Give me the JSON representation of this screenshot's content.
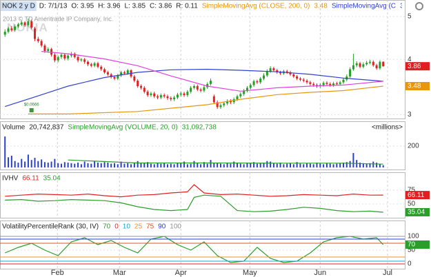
{
  "watermark": {
    "logo": "NOKIA",
    "copyright": "2013 © TD Ameritrade IP Company, Inc."
  },
  "chart_data": [
    {
      "type": "candlestick",
      "header": [
        {
          "text": "NOK 2 y D",
          "bg": "#cfe0f4"
        },
        {
          "text": "D: 7/1/13"
        },
        {
          "text": "O: 3.95"
        },
        {
          "text": "H: 3.96"
        },
        {
          "text": "L: 3.85"
        },
        {
          "text": "C: 3.86"
        },
        {
          "text": "R: 0.11"
        }
      ],
      "log_scale": true,
      "grid": true,
      "axis_box": true,
      "xlim": [
        -1.5,
        120.5
      ],
      "xticks": [
        {
          "value": 15.8,
          "label": "Feb"
        },
        {
          "value": 34.5,
          "label": "Mar"
        },
        {
          "value": 53,
          "label": "Apr"
        },
        {
          "value": 73.8,
          "label": "May"
        },
        {
          "value": 95,
          "label": "Jun"
        },
        {
          "value": 115.3,
          "label": "Jul"
        }
      ],
      "ylim": [
        2.94,
        5.11
      ],
      "yticks": [
        3,
        4,
        5
      ],
      "up_color": "#22a022",
      "down_color": "#e02020",
      "open": [
        4.55,
        4.62,
        4.7,
        4.66,
        4.75,
        4.8,
        4.85,
        4.78,
        4.88,
        4.7,
        4.45,
        4.4,
        4.3,
        4.18,
        4.22,
        4.1,
        3.98,
        4.05,
        4.1,
        4.02,
        4.08,
        4.12,
        4.05,
        3.98,
        4.0,
        3.95,
        3.9,
        3.87,
        3.92,
        3.85,
        3.8,
        3.74,
        3.7,
        3.65,
        3.62,
        3.68,
        3.74,
        3.72,
        3.78,
        3.66,
        3.58,
        3.48,
        3.45,
        3.38,
        3.32,
        3.35,
        3.3,
        3.28,
        3.32,
        3.3,
        3.27,
        3.25,
        3.28,
        3.33,
        3.35,
        3.32,
        3.38,
        3.45,
        3.48,
        3.42,
        3.4,
        3.46,
        3.52,
        3.3,
        3.2,
        3.12,
        3.15,
        3.18,
        3.22,
        3.2,
        3.25,
        3.3,
        3.34,
        3.4,
        3.45,
        3.5,
        3.57,
        3.55,
        3.62,
        3.68,
        3.76,
        3.82,
        3.78,
        3.74,
        3.72,
        3.76,
        3.74,
        3.7,
        3.66,
        3.62,
        3.6,
        3.58,
        3.55,
        3.52,
        3.5,
        3.48,
        3.5,
        3.54,
        3.52,
        3.5,
        3.53,
        3.52,
        3.55,
        3.6,
        3.66,
        3.8,
        3.88,
        3.92,
        3.85,
        3.9,
        3.93,
        3.95,
        3.88,
        3.82,
        3.95
      ],
      "high": [
        4.68,
        4.74,
        4.76,
        4.8,
        4.84,
        4.9,
        4.88,
        4.95,
        4.92,
        4.74,
        4.5,
        4.44,
        4.34,
        4.26,
        4.25,
        4.14,
        4.08,
        4.14,
        4.13,
        4.11,
        4.16,
        4.15,
        4.08,
        4.03,
        4.03,
        3.98,
        3.93,
        3.95,
        3.95,
        3.88,
        3.83,
        3.77,
        3.73,
        3.68,
        3.71,
        3.77,
        3.77,
        3.81,
        3.8,
        3.69,
        3.61,
        3.51,
        3.48,
        3.41,
        3.38,
        3.38,
        3.33,
        3.35,
        3.35,
        3.33,
        3.3,
        3.31,
        3.36,
        3.38,
        3.38,
        3.41,
        3.48,
        3.51,
        3.51,
        3.45,
        3.49,
        3.55,
        3.62,
        3.33,
        3.23,
        3.18,
        3.21,
        3.25,
        3.25,
        3.28,
        3.33,
        3.37,
        3.43,
        3.48,
        3.53,
        3.6,
        3.6,
        3.65,
        3.72,
        3.8,
        3.86,
        3.85,
        3.81,
        3.77,
        3.79,
        3.79,
        3.77,
        3.73,
        3.69,
        3.65,
        3.63,
        3.61,
        3.58,
        3.55,
        3.53,
        3.53,
        3.57,
        3.57,
        3.55,
        3.56,
        3.56,
        3.58,
        3.63,
        3.7,
        3.84,
        4.12,
        3.96,
        3.95,
        3.94,
        3.97,
        3.99,
        3.98,
        3.91,
        3.98,
        3.96
      ],
      "low": [
        4.5,
        4.58,
        4.62,
        4.62,
        4.71,
        4.76,
        4.74,
        4.74,
        4.68,
        4.4,
        4.36,
        4.26,
        4.14,
        4.14,
        4.06,
        3.94,
        3.94,
        4.01,
        3.98,
        3.98,
        4.04,
        4.02,
        3.94,
        3.95,
        3.91,
        3.86,
        3.84,
        3.84,
        3.82,
        3.77,
        3.71,
        3.67,
        3.62,
        3.59,
        3.59,
        3.65,
        3.69,
        3.69,
        3.63,
        3.55,
        3.45,
        3.42,
        3.35,
        3.29,
        3.29,
        3.27,
        3.25,
        3.25,
        3.27,
        3.24,
        3.22,
        3.22,
        3.25,
        3.3,
        3.29,
        3.29,
        3.35,
        3.42,
        3.39,
        3.37,
        3.37,
        3.43,
        3.49,
        3.17,
        3.09,
        3.09,
        3.12,
        3.15,
        3.17,
        3.17,
        3.22,
        3.27,
        3.31,
        3.37,
        3.42,
        3.47,
        3.52,
        3.52,
        3.59,
        3.65,
        3.73,
        3.75,
        3.71,
        3.69,
        3.69,
        3.71,
        3.67,
        3.63,
        3.59,
        3.57,
        3.55,
        3.52,
        3.49,
        3.47,
        3.45,
        3.45,
        3.47,
        3.49,
        3.47,
        3.47,
        3.49,
        3.49,
        3.52,
        3.57,
        3.63,
        3.77,
        3.84,
        3.82,
        3.82,
        3.87,
        3.9,
        3.85,
        3.79,
        3.79,
        3.85
      ],
      "close": [
        4.62,
        4.7,
        4.66,
        4.75,
        4.8,
        4.85,
        4.78,
        4.88,
        4.72,
        4.45,
        4.4,
        4.3,
        4.18,
        4.22,
        4.1,
        3.98,
        4.05,
        4.1,
        4.02,
        4.08,
        4.12,
        4.05,
        3.98,
        4.0,
        3.95,
        3.9,
        3.87,
        3.92,
        3.85,
        3.8,
        3.74,
        3.7,
        3.65,
        3.62,
        3.68,
        3.74,
        3.72,
        3.78,
        3.66,
        3.58,
        3.48,
        3.45,
        3.38,
        3.32,
        3.35,
        3.3,
        3.28,
        3.32,
        3.3,
        3.27,
        3.25,
        3.28,
        3.33,
        3.35,
        3.32,
        3.38,
        3.45,
        3.48,
        3.42,
        3.4,
        3.46,
        3.52,
        3.58,
        3.2,
        3.12,
        3.15,
        3.18,
        3.22,
        3.2,
        3.25,
        3.3,
        3.34,
        3.4,
        3.45,
        3.5,
        3.57,
        3.55,
        3.62,
        3.68,
        3.76,
        3.82,
        3.78,
        3.74,
        3.72,
        3.76,
        3.74,
        3.7,
        3.66,
        3.62,
        3.6,
        3.58,
        3.55,
        3.52,
        3.5,
        3.48,
        3.5,
        3.54,
        3.52,
        3.5,
        3.53,
        3.52,
        3.55,
        3.6,
        3.66,
        3.8,
        3.88,
        3.92,
        3.85,
        3.9,
        3.93,
        3.95,
        3.88,
        3.82,
        3.95,
        3.86
      ],
      "overlays": [
        {
          "name": "SimpleMovingAvg (CLOSE, 200, 0)",
          "color": "#e8960c",
          "axis_box": true,
          "x": [
            7,
            19,
            40,
            61,
            71,
            82,
            92,
            102,
            114
          ],
          "values": [
            3.01,
            3.01,
            3.05,
            3.16,
            3.25,
            3.33,
            3.37,
            3.4,
            3.48
          ]
        },
        {
          "name": "SimpleMovingAvg (C",
          "color": "#2f3fd0",
          "x": [
            0,
            9,
            19,
            30,
            40,
            50,
            61,
            71,
            82,
            92,
            102,
            114
          ],
          "values": [
            3.13,
            3.29,
            3.48,
            3.64,
            3.74,
            3.79,
            3.8,
            3.78,
            3.75,
            3.7,
            3.63,
            3.57
          ]
        },
        {
          "color": "#e040e0",
          "x": [
            11,
            19,
            30,
            40,
            50,
            61,
            71,
            82,
            92,
            102,
            114
          ],
          "values": [
            4.17,
            4.12,
            4.01,
            3.87,
            3.67,
            3.48,
            3.39,
            3.45,
            3.48,
            3.5,
            3.57
          ]
        }
      ],
      "annotations": [
        {
          "text": "$0.0666",
          "x": 8
        }
      ]
    },
    {
      "type": "bar",
      "header": [
        {
          "text": "Volume"
        }
      ],
      "last_label": "20,742,837",
      "unit": "<millions>",
      "ylim": [
        0,
        310
      ],
      "yticks": [
        200
      ],
      "grid": true,
      "color": "#2a3fc8",
      "values": [
        290,
        95,
        110,
        60,
        45,
        80,
        55,
        120,
        70,
        90,
        60,
        75,
        50,
        45,
        55,
        80,
        40,
        35,
        50,
        45,
        40,
        35,
        45,
        30,
        55,
        40,
        35,
        60,
        45,
        40,
        50,
        45,
        35,
        40,
        30,
        55,
        35,
        40,
        30,
        45,
        60,
        45,
        40,
        50,
        35,
        30,
        40,
        35,
        45,
        30,
        35,
        30,
        40,
        45,
        55,
        30,
        35,
        60,
        40,
        30,
        50,
        35,
        70,
        45,
        40,
        35,
        30,
        45,
        35,
        55,
        40,
        35,
        30,
        45,
        40,
        50,
        35,
        40,
        45,
        60,
        55,
        40,
        35,
        45,
        30,
        35,
        40,
        30,
        50,
        35,
        30,
        40,
        35,
        30,
        45,
        35,
        30,
        40,
        35,
        30,
        35,
        40,
        45,
        50,
        60,
        135,
        70,
        45,
        40,
        35,
        40,
        55,
        45,
        35,
        20.74
      ],
      "overlays": [
        {
          "name": "SimpleMovingAvg (VOLUME, 20, 0)",
          "last_label": "31,092,738",
          "color": "#2a9d2a",
          "x": [
            19,
            40,
            61,
            82,
            102,
            114
          ],
          "values": [
            70,
            42,
            42,
            40,
            40,
            31.09
          ]
        }
      ]
    },
    {
      "type": "line",
      "header": [
        {
          "text": "IVHV"
        }
      ],
      "ylim": [
        25,
        90
      ],
      "yticks": [
        50,
        75
      ],
      "grid": true,
      "series": [
        {
          "color": "#e02020",
          "axis_box": true,
          "x": [
            0,
            5,
            10,
            15,
            20,
            25,
            30,
            35,
            40,
            45,
            50,
            55,
            57,
            60,
            65,
            70,
            75,
            80,
            85,
            90,
            95,
            100,
            105,
            110,
            114
          ],
          "values": [
            64,
            66,
            68,
            67,
            66,
            68,
            65,
            63,
            66,
            67,
            70,
            72,
            85,
            70,
            67,
            68,
            66,
            64,
            65,
            67,
            66,
            65,
            68,
            66,
            66.11
          ]
        },
        {
          "color": "#2a9d2a",
          "axis_box": true,
          "x": [
            0,
            5,
            10,
            15,
            20,
            25,
            30,
            35,
            40,
            45,
            50,
            55,
            57,
            60,
            65,
            70,
            75,
            80,
            85,
            90,
            95,
            100,
            105,
            110,
            114
          ],
          "values": [
            57,
            58,
            55,
            56,
            58,
            57,
            56,
            52,
            45,
            40,
            38,
            40,
            62,
            66,
            64,
            38,
            36,
            37,
            40,
            44,
            42,
            38,
            36,
            37,
            35.04
          ]
        }
      ]
    },
    {
      "type": "line",
      "header": [
        {
          "text": "VolatilityPercentileRank (30, IV)"
        }
      ],
      "ylim": [
        -15,
        125
      ],
      "yticks": [
        0,
        50,
        100
      ],
      "grid": true,
      "series": [
        {
          "color": "#2a9d2a",
          "axis_box": true,
          "x": [
            0,
            4,
            8,
            12,
            16,
            20,
            24,
            28,
            32,
            36,
            40,
            44,
            48,
            52,
            56,
            60,
            64,
            68,
            72,
            76,
            80,
            84,
            88,
            92,
            96,
            100,
            104,
            108,
            112,
            114
          ],
          "values": [
            40,
            60,
            75,
            50,
            30,
            80,
            95,
            70,
            85,
            60,
            40,
            90,
            100,
            70,
            50,
            80,
            30,
            5,
            10,
            60,
            20,
            5,
            10,
            40,
            80,
            95,
            100,
            90,
            95,
            70
          ]
        }
      ],
      "levels": [
        {
          "value": 0,
          "color": "#e02020"
        },
        {
          "value": 10,
          "color": "#10a8d0"
        },
        {
          "value": 25,
          "color": "#f09020"
        },
        {
          "value": 75,
          "color": "#e05020"
        },
        {
          "value": 90,
          "color": "#2040d0"
        },
        {
          "value": 100,
          "color": "#909090"
        }
      ]
    }
  ]
}
